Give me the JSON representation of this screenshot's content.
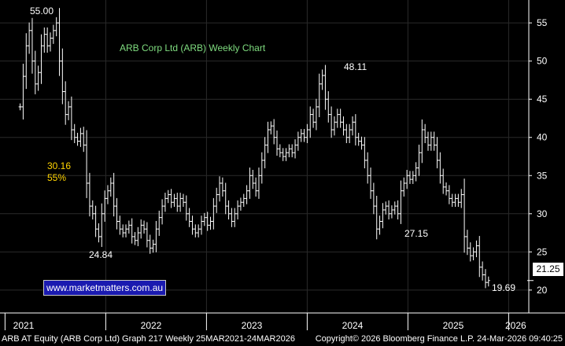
{
  "chart_data": {
    "type": "ohlc",
    "title": "ARB Corp Ltd (ARB) Weekly Chart",
    "ylim": [
      17,
      58
    ],
    "y_ticks": [
      20,
      25,
      30,
      35,
      40,
      45,
      50,
      55
    ],
    "x_labels": [
      "2021",
      "2022",
      "2023",
      "2024",
      "2025",
      "2026"
    ],
    "grid": true,
    "last_price": "21.25",
    "annotations": {
      "high_2021": "55.00",
      "low_2022": "24.84",
      "high_2024": "48.11",
      "low_2025": "27.15",
      "low_2026": "19.69",
      "retracement_level": "30.16",
      "retracement_pct": "55%"
    },
    "series": [
      {
        "points": [
          [
            2021.2,
            44
          ],
          [
            2021.23,
            48
          ],
          [
            2021.26,
            52
          ],
          [
            2021.29,
            54
          ],
          [
            2021.32,
            50
          ],
          [
            2021.35,
            47
          ],
          [
            2021.38,
            48.5
          ],
          [
            2021.41,
            52
          ],
          [
            2021.44,
            53.5
          ],
          [
            2021.47,
            52
          ],
          [
            2021.5,
            53
          ],
          [
            2021.53,
            54
          ],
          [
            2021.56,
            55
          ],
          [
            2021.59,
            50
          ],
          [
            2021.62,
            46
          ],
          [
            2021.65,
            43
          ],
          [
            2021.68,
            44
          ],
          [
            2021.71,
            41
          ],
          [
            2021.74,
            40
          ],
          [
            2021.77,
            39.5
          ],
          [
            2021.8,
            40.5
          ],
          [
            2021.83,
            39
          ],
          [
            2021.86,
            34
          ],
          [
            2021.89,
            31
          ],
          [
            2021.92,
            30
          ],
          [
            2021.95,
            28
          ],
          [
            2021.98,
            27
          ],
          [
            2022.01,
            30
          ],
          [
            2022.04,
            32
          ],
          [
            2022.07,
            33
          ],
          [
            2022.1,
            34
          ],
          [
            2022.13,
            31
          ],
          [
            2022.16,
            29
          ],
          [
            2022.19,
            28
          ],
          [
            2022.22,
            27.5
          ],
          [
            2022.25,
            28
          ],
          [
            2022.28,
            28.5
          ],
          [
            2022.31,
            27
          ],
          [
            2022.34,
            26.5
          ],
          [
            2022.37,
            27.5
          ],
          [
            2022.4,
            28.5
          ],
          [
            2022.43,
            28
          ],
          [
            2022.46,
            26.5
          ],
          [
            2022.49,
            25.5
          ],
          [
            2022.52,
            26
          ],
          [
            2022.55,
            28
          ],
          [
            2022.58,
            29.5
          ],
          [
            2022.61,
            31
          ],
          [
            2022.64,
            32
          ],
          [
            2022.67,
            32.5
          ],
          [
            2022.7,
            31.5
          ],
          [
            2022.73,
            32
          ],
          [
            2022.76,
            31
          ],
          [
            2022.79,
            32
          ],
          [
            2022.82,
            31.5
          ],
          [
            2022.85,
            30
          ],
          [
            2022.88,
            29
          ],
          [
            2022.91,
            28
          ],
          [
            2022.94,
            27.5
          ],
          [
            2022.97,
            28
          ],
          [
            2023.0,
            29
          ],
          [
            2023.03,
            29.5
          ],
          [
            2023.06,
            28.5
          ],
          [
            2023.09,
            29
          ],
          [
            2023.12,
            31
          ],
          [
            2023.15,
            32.5
          ],
          [
            2023.18,
            34
          ],
          [
            2023.21,
            33
          ],
          [
            2023.24,
            31
          ],
          [
            2023.27,
            30
          ],
          [
            2023.3,
            29
          ],
          [
            2023.33,
            30
          ],
          [
            2023.36,
            31
          ],
          [
            2023.39,
            31.5
          ],
          [
            2023.42,
            32
          ],
          [
            2023.45,
            33
          ],
          [
            2023.48,
            35
          ],
          [
            2023.51,
            34
          ],
          [
            2023.54,
            33
          ],
          [
            2023.57,
            35
          ],
          [
            2023.6,
            37
          ],
          [
            2023.63,
            39
          ],
          [
            2023.66,
            41
          ],
          [
            2023.69,
            41.5
          ],
          [
            2023.72,
            40
          ],
          [
            2023.75,
            38.5
          ],
          [
            2023.78,
            38
          ],
          [
            2023.81,
            37.5
          ],
          [
            2023.84,
            38
          ],
          [
            2023.87,
            38.5
          ],
          [
            2023.9,
            38
          ],
          [
            2023.93,
            39
          ],
          [
            2023.96,
            40
          ],
          [
            2023.99,
            40.5
          ],
          [
            2024.02,
            40
          ],
          [
            2024.05,
            41
          ],
          [
            2024.08,
            43
          ],
          [
            2024.11,
            42
          ],
          [
            2024.14,
            44
          ],
          [
            2024.17,
            47
          ],
          [
            2024.2,
            48.11
          ],
          [
            2024.23,
            45
          ],
          [
            2024.26,
            43
          ],
          [
            2024.29,
            41
          ],
          [
            2024.32,
            42
          ],
          [
            2024.35,
            43
          ],
          [
            2024.38,
            42
          ],
          [
            2024.41,
            41
          ],
          [
            2024.44,
            40
          ],
          [
            2024.47,
            41
          ],
          [
            2024.5,
            42
          ],
          [
            2024.53,
            40
          ],
          [
            2024.56,
            39.5
          ],
          [
            2024.59,
            39
          ],
          [
            2024.62,
            37
          ],
          [
            2024.65,
            35
          ],
          [
            2024.68,
            33
          ],
          [
            2024.71,
            31
          ],
          [
            2024.74,
            28
          ],
          [
            2024.77,
            29
          ],
          [
            2024.8,
            30.5
          ],
          [
            2024.83,
            31
          ],
          [
            2024.86,
            30
          ],
          [
            2024.89,
            30.5
          ],
          [
            2024.92,
            31
          ],
          [
            2024.95,
            30
          ],
          [
            2024.98,
            33
          ],
          [
            2025.01,
            34
          ],
          [
            2025.04,
            35
          ],
          [
            2025.07,
            34.5
          ],
          [
            2025.1,
            35
          ],
          [
            2025.13,
            36
          ],
          [
            2025.16,
            38
          ],
          [
            2025.19,
            41
          ],
          [
            2025.22,
            40
          ],
          [
            2025.25,
            39
          ],
          [
            2025.28,
            40
          ],
          [
            2025.31,
            39
          ],
          [
            2025.34,
            37
          ],
          [
            2025.37,
            35
          ],
          [
            2025.4,
            33.5
          ],
          [
            2025.43,
            33
          ],
          [
            2025.46,
            32
          ],
          [
            2025.49,
            31.5
          ],
          [
            2025.52,
            32
          ],
          [
            2025.55,
            31.5
          ],
          [
            2025.58,
            32.5
          ],
          [
            2025.61,
            27
          ],
          [
            2025.64,
            25.5
          ],
          [
            2025.67,
            24.5
          ],
          [
            2025.7,
            25
          ],
          [
            2025.73,
            25.8
          ],
          [
            2025.76,
            23
          ],
          [
            2025.79,
            22
          ],
          [
            2025.82,
            21
          ],
          [
            2025.85,
            21.25
          ]
        ]
      }
    ]
  },
  "watermark": "www.marketmatters.com.au",
  "footer": {
    "left": "ARB AT Equity (ARB Corp Ltd) Graph 217 Weekly 25MAR2021-24MAR2026",
    "right": "Copyright© 2026 Bloomberg Finance L.P.   24-Mar-2026 09:40:25"
  },
  "colors": {
    "background": "#000000",
    "grid": "#2a2a2a",
    "bars": "#ffffff",
    "title": "#7fdc7f",
    "annotation_yellow": "#ffd400"
  }
}
